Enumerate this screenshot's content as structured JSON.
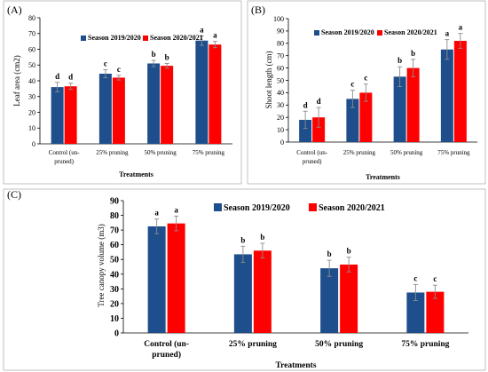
{
  "figure": {
    "panels": [
      "(A)",
      "(B)",
      "(C)"
    ]
  },
  "colors": {
    "series1": "#1f4e8c",
    "series2": "#ff0000"
  },
  "chart_data": [
    {
      "panel": "(A)",
      "type": "bar",
      "title": "",
      "xlabel": "Treatments",
      "ylabel": "Leaf area (cm2)",
      "categories": [
        "Control (un-pruned)",
        "25% pruning",
        "50% pruning",
        "75% pruning"
      ],
      "category_lines": [
        [
          "Control (un-",
          "pruned)"
        ],
        [
          "25% pruning"
        ],
        [
          "50% pruning"
        ],
        [
          "75% pruning"
        ]
      ],
      "ylim": [
        0,
        80
      ],
      "yticks": [
        0,
        10,
        20,
        30,
        40,
        50,
        60,
        70,
        80
      ],
      "legend_position": "top-center",
      "error_bars": true,
      "series": [
        {
          "name": "Season 2019/2020",
          "values": [
            36,
            44.5,
            51,
            65.5
          ],
          "errors": [
            3,
            2.5,
            2,
            3
          ],
          "letters": [
            "d",
            "c",
            "b",
            "a"
          ]
        },
        {
          "name": "Season 2020/2021",
          "values": [
            36.5,
            42,
            49.5,
            63
          ],
          "errors": [
            2,
            1.5,
            1.5,
            2
          ],
          "letters": [
            "d",
            "c",
            "b",
            "a"
          ]
        }
      ]
    },
    {
      "panel": "(B)",
      "type": "bar",
      "title": "",
      "xlabel": "Treatments",
      "ylabel": "Shoot length (cm)",
      "categories": [
        "Control (un-pruned)",
        "25% pruning",
        "50% pruning",
        "75% pruning"
      ],
      "category_lines": [
        [
          "Control (un-",
          "pruned)"
        ],
        [
          "25% pruning"
        ],
        [
          "50% pruning"
        ],
        [
          "75% pruning"
        ]
      ],
      "ylim": [
        0,
        100
      ],
      "yticks": [
        0,
        10,
        20,
        30,
        40,
        50,
        60,
        70,
        80,
        90,
        100
      ],
      "legend_position": "top-center",
      "error_bars": true,
      "series": [
        {
          "name": "Season 2019/2020",
          "values": [
            18,
            35,
            53,
            75
          ],
          "errors": [
            7,
            7,
            8,
            8
          ],
          "letters": [
            "d",
            "c",
            "b",
            "a"
          ]
        },
        {
          "name": "Season 2020/2021",
          "values": [
            20,
            40,
            60,
            82
          ],
          "errors": [
            8,
            7,
            7,
            6
          ],
          "letters": [
            "d",
            "c",
            "b",
            "a"
          ]
        }
      ]
    },
    {
      "panel": "(C)",
      "type": "bar",
      "title": "",
      "xlabel": "Treatments",
      "ylabel": "Tree canopy volume (m3)",
      "categories": [
        "Control (un-pruned)",
        "25% pruning",
        "50% pruning",
        "75% pruning"
      ],
      "category_lines": [
        [
          "Control (un-",
          "pruned)"
        ],
        [
          "25% pruning"
        ],
        [
          "50% pruning"
        ],
        [
          "75% pruning"
        ]
      ],
      "ylim": [
        0,
        90
      ],
      "yticks": [
        0,
        10,
        20,
        30,
        40,
        50,
        60,
        70,
        80,
        90
      ],
      "legend_position": "top-right",
      "error_bars": true,
      "series": [
        {
          "name": "Season 2019/2020",
          "values": [
            72.5,
            53.5,
            44,
            27.5
          ],
          "errors": [
            5,
            5.5,
            5.5,
            5.5
          ],
          "letters": [
            "a",
            "b",
            "b",
            "c"
          ]
        },
        {
          "name": "Season 2020/2021",
          "values": [
            74.5,
            56,
            46.5,
            28
          ],
          "errors": [
            5,
            5,
            5,
            4.5
          ],
          "letters": [
            "a",
            "b",
            "b",
            "c"
          ]
        }
      ]
    }
  ]
}
